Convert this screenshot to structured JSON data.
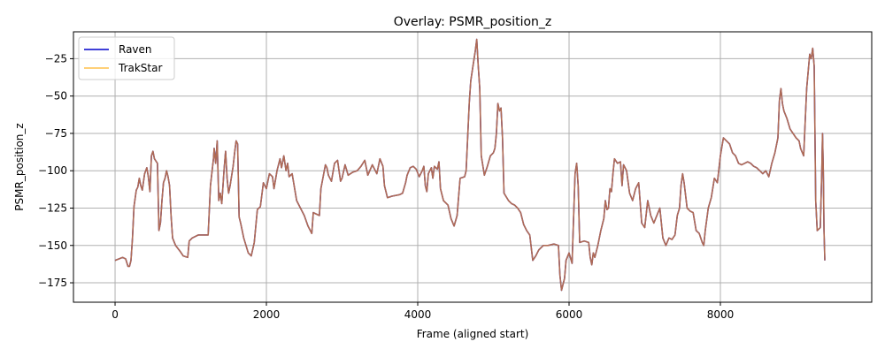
{
  "chart_data": {
    "type": "line",
    "title": "Overlay: PSMR_position_z",
    "xlabel": "Frame (aligned start)",
    "ylabel": "PSMR_position_z",
    "xlim": [
      -550,
      10000
    ],
    "ylim": [
      -188,
      -7
    ],
    "xticks": [
      0,
      2000,
      4000,
      6000,
      8000
    ],
    "yticks": [
      -25,
      -50,
      -75,
      -100,
      -125,
      -150,
      -175
    ],
    "grid": true,
    "legend_position": "top-left",
    "series": [
      {
        "name": "Raven",
        "color": "#0000cc",
        "points": [
          [
            0,
            -160
          ],
          [
            100,
            -158
          ],
          [
            140,
            -159
          ],
          [
            170,
            -164
          ],
          [
            190,
            -164
          ],
          [
            210,
            -160
          ],
          [
            230,
            -145
          ],
          [
            250,
            -124
          ],
          [
            280,
            -113
          ],
          [
            300,
            -111
          ],
          [
            320,
            -105
          ],
          [
            340,
            -110
          ],
          [
            360,
            -113
          ],
          [
            390,
            -102
          ],
          [
            420,
            -98
          ],
          [
            440,
            -104
          ],
          [
            460,
            -114
          ],
          [
            480,
            -90
          ],
          [
            500,
            -87
          ],
          [
            520,
            -92
          ],
          [
            560,
            -95
          ],
          [
            580,
            -140
          ],
          [
            600,
            -135
          ],
          [
            620,
            -120
          ],
          [
            640,
            -108
          ],
          [
            660,
            -105
          ],
          [
            680,
            -100
          ],
          [
            700,
            -104
          ],
          [
            720,
            -110
          ],
          [
            740,
            -130
          ],
          [
            760,
            -145
          ],
          [
            800,
            -150
          ],
          [
            860,
            -154
          ],
          [
            900,
            -157
          ],
          [
            960,
            -158
          ],
          [
            980,
            -147
          ],
          [
            1020,
            -145
          ],
          [
            1100,
            -143
          ],
          [
            1230,
            -143
          ],
          [
            1260,
            -110
          ],
          [
            1300,
            -92
          ],
          [
            1310,
            -85
          ],
          [
            1330,
            -95
          ],
          [
            1350,
            -80
          ],
          [
            1370,
            -120
          ],
          [
            1390,
            -115
          ],
          [
            1410,
            -122
          ],
          [
            1440,
            -100
          ],
          [
            1460,
            -87
          ],
          [
            1480,
            -105
          ],
          [
            1500,
            -115
          ],
          [
            1520,
            -110
          ],
          [
            1560,
            -97
          ],
          [
            1580,
            -88
          ],
          [
            1600,
            -80
          ],
          [
            1620,
            -82
          ],
          [
            1640,
            -131
          ],
          [
            1660,
            -135
          ],
          [
            1700,
            -145
          ],
          [
            1760,
            -155
          ],
          [
            1800,
            -157
          ],
          [
            1840,
            -148
          ],
          [
            1880,
            -126
          ],
          [
            1920,
            -124
          ],
          [
            1960,
            -108
          ],
          [
            2000,
            -112
          ],
          [
            2040,
            -102
          ],
          [
            2080,
            -104
          ],
          [
            2100,
            -112
          ],
          [
            2140,
            -100
          ],
          [
            2180,
            -92
          ],
          [
            2200,
            -98
          ],
          [
            2230,
            -90
          ],
          [
            2260,
            -100
          ],
          [
            2280,
            -95
          ],
          [
            2300,
            -104
          ],
          [
            2340,
            -102
          ],
          [
            2400,
            -120
          ],
          [
            2450,
            -125
          ],
          [
            2500,
            -130
          ],
          [
            2550,
            -137
          ],
          [
            2600,
            -142
          ],
          [
            2620,
            -128
          ],
          [
            2700,
            -130
          ],
          [
            2720,
            -112
          ],
          [
            2780,
            -96
          ],
          [
            2800,
            -98
          ],
          [
            2820,
            -103
          ],
          [
            2860,
            -107
          ],
          [
            2900,
            -95
          ],
          [
            2940,
            -93
          ],
          [
            2980,
            -107
          ],
          [
            3000,
            -105
          ],
          [
            3040,
            -96
          ],
          [
            3080,
            -103
          ],
          [
            3140,
            -101
          ],
          [
            3200,
            -100
          ],
          [
            3250,
            -97
          ],
          [
            3300,
            -93
          ],
          [
            3340,
            -103
          ],
          [
            3400,
            -96
          ],
          [
            3440,
            -100
          ],
          [
            3460,
            -102
          ],
          [
            3500,
            -92
          ],
          [
            3540,
            -97
          ],
          [
            3560,
            -110
          ],
          [
            3600,
            -118
          ],
          [
            3660,
            -117
          ],
          [
            3760,
            -116
          ],
          [
            3800,
            -115
          ],
          [
            3840,
            -108
          ],
          [
            3860,
            -103
          ],
          [
            3900,
            -98
          ],
          [
            3940,
            -97
          ],
          [
            3980,
            -99
          ],
          [
            4020,
            -104
          ],
          [
            4060,
            -100
          ],
          [
            4080,
            -97
          ],
          [
            4100,
            -110
          ],
          [
            4120,
            -114
          ],
          [
            4140,
            -102
          ],
          [
            4180,
            -98
          ],
          [
            4200,
            -105
          ],
          [
            4220,
            -97
          ],
          [
            4260,
            -99
          ],
          [
            4280,
            -94
          ],
          [
            4300,
            -112
          ],
          [
            4340,
            -120
          ],
          [
            4400,
            -123
          ],
          [
            4440,
            -132
          ],
          [
            4480,
            -137
          ],
          [
            4520,
            -130
          ],
          [
            4560,
            -105
          ],
          [
            4620,
            -104
          ],
          [
            4640,
            -100
          ],
          [
            4680,
            -55
          ],
          [
            4700,
            -40
          ],
          [
            4730,
            -30
          ],
          [
            4760,
            -20
          ],
          [
            4780,
            -12
          ],
          [
            4800,
            -30
          ],
          [
            4820,
            -45
          ],
          [
            4840,
            -90
          ],
          [
            4880,
            -103
          ],
          [
            4920,
            -97
          ],
          [
            4960,
            -90
          ],
          [
            5000,
            -88
          ],
          [
            5020,
            -85
          ],
          [
            5040,
            -75
          ],
          [
            5060,
            -55
          ],
          [
            5080,
            -60
          ],
          [
            5100,
            -58
          ],
          [
            5120,
            -78
          ],
          [
            5140,
            -115
          ],
          [
            5200,
            -120
          ],
          [
            5240,
            -122
          ],
          [
            5280,
            -123
          ],
          [
            5320,
            -125
          ],
          [
            5360,
            -128
          ],
          [
            5400,
            -136
          ],
          [
            5440,
            -140
          ],
          [
            5480,
            -143
          ],
          [
            5520,
            -160
          ],
          [
            5560,
            -157
          ],
          [
            5600,
            -153
          ],
          [
            5660,
            -150
          ],
          [
            5720,
            -150
          ],
          [
            5800,
            -149
          ],
          [
            5860,
            -150
          ],
          [
            5880,
            -170
          ],
          [
            5900,
            -180
          ],
          [
            5920,
            -176
          ],
          [
            5940,
            -172
          ],
          [
            5960,
            -160
          ],
          [
            6000,
            -155
          ],
          [
            6040,
            -162
          ],
          [
            6080,
            -102
          ],
          [
            6100,
            -95
          ],
          [
            6120,
            -110
          ],
          [
            6140,
            -148
          ],
          [
            6200,
            -147
          ],
          [
            6260,
            -148
          ],
          [
            6280,
            -158
          ],
          [
            6300,
            -163
          ],
          [
            6320,
            -155
          ],
          [
            6340,
            -158
          ],
          [
            6380,
            -150
          ],
          [
            6420,
            -140
          ],
          [
            6460,
            -132
          ],
          [
            6480,
            -120
          ],
          [
            6500,
            -126
          ],
          [
            6520,
            -125
          ],
          [
            6540,
            -112
          ],
          [
            6560,
            -114
          ],
          [
            6580,
            -102
          ],
          [
            6600,
            -92
          ],
          [
            6640,
            -95
          ],
          [
            6680,
            -94
          ],
          [
            6700,
            -110
          ],
          [
            6720,
            -96
          ],
          [
            6760,
            -100
          ],
          [
            6800,
            -115
          ],
          [
            6840,
            -120
          ],
          [
            6880,
            -112
          ],
          [
            6920,
            -108
          ],
          [
            6960,
            -135
          ],
          [
            7000,
            -138
          ],
          [
            7040,
            -120
          ],
          [
            7080,
            -130
          ],
          [
            7120,
            -135
          ],
          [
            7160,
            -130
          ],
          [
            7200,
            -125
          ],
          [
            7240,
            -145
          ],
          [
            7280,
            -150
          ],
          [
            7320,
            -145
          ],
          [
            7360,
            -146
          ],
          [
            7400,
            -143
          ],
          [
            7430,
            -130
          ],
          [
            7460,
            -125
          ],
          [
            7480,
            -110
          ],
          [
            7500,
            -102
          ],
          [
            7520,
            -108
          ],
          [
            7560,
            -125
          ],
          [
            7600,
            -127
          ],
          [
            7640,
            -128
          ],
          [
            7680,
            -140
          ],
          [
            7720,
            -142
          ],
          [
            7760,
            -148
          ],
          [
            7780,
            -150
          ],
          [
            7800,
            -140
          ],
          [
            7840,
            -125
          ],
          [
            7880,
            -118
          ],
          [
            7920,
            -105
          ],
          [
            7960,
            -108
          ],
          [
            8000,
            -90
          ],
          [
            8040,
            -78
          ],
          [
            8080,
            -80
          ],
          [
            8120,
            -82
          ],
          [
            8160,
            -88
          ],
          [
            8200,
            -90
          ],
          [
            8240,
            -95
          ],
          [
            8280,
            -96
          ],
          [
            8320,
            -95
          ],
          [
            8360,
            -94
          ],
          [
            8400,
            -95
          ],
          [
            8440,
            -97
          ],
          [
            8480,
            -98
          ],
          [
            8520,
            -100
          ],
          [
            8560,
            -102
          ],
          [
            8600,
            -100
          ],
          [
            8640,
            -104
          ],
          [
            8680,
            -95
          ],
          [
            8720,
            -88
          ],
          [
            8760,
            -78
          ],
          [
            8780,
            -53
          ],
          [
            8800,
            -45
          ],
          [
            8820,
            -55
          ],
          [
            8840,
            -60
          ],
          [
            8880,
            -65
          ],
          [
            8920,
            -72
          ],
          [
            8960,
            -75
          ],
          [
            9000,
            -78
          ],
          [
            9040,
            -80
          ],
          [
            9060,
            -85
          ],
          [
            9100,
            -90
          ],
          [
            9140,
            -45
          ],
          [
            9180,
            -22
          ],
          [
            9200,
            -25
          ],
          [
            9220,
            -18
          ],
          [
            9240,
            -30
          ],
          [
            9260,
            -120
          ],
          [
            9280,
            -140
          ],
          [
            9320,
            -138
          ],
          [
            9340,
            -100
          ],
          [
            9350,
            -75
          ],
          [
            9360,
            -100
          ],
          [
            9370,
            -140
          ],
          [
            9380,
            -160
          ]
        ]
      },
      {
        "name": "TrakStar",
        "color": "#ffa500",
        "points": []
      }
    ],
    "overlay_color": "#b06b54"
  }
}
